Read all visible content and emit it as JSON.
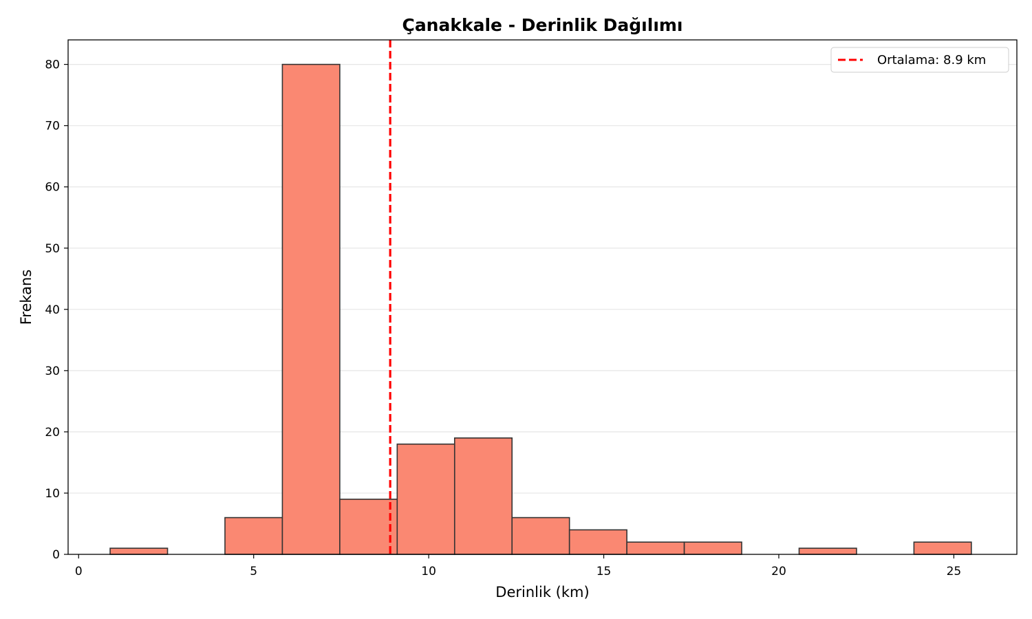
{
  "chart_data": {
    "type": "bar",
    "title": "Çanakkale - Derinlik Dağılımı",
    "xlabel": "Derinlik (km)",
    "ylabel": "Frekans",
    "xlim": [
      -0.3,
      26.8
    ],
    "ylim": [
      0,
      84
    ],
    "xticks": [
      0,
      5,
      10,
      15,
      20,
      25
    ],
    "yticks": [
      0,
      10,
      20,
      30,
      40,
      50,
      60,
      70,
      80
    ],
    "grid": "y",
    "bin_edges": [
      0.9,
      2.54,
      4.18,
      5.82,
      7.46,
      9.1,
      10.74,
      12.38,
      14.02,
      15.66,
      17.3,
      18.94,
      20.58,
      22.22,
      23.86,
      25.5
    ],
    "values": [
      1,
      0,
      6,
      80,
      9,
      18,
      19,
      6,
      4,
      2,
      2,
      0,
      1,
      0,
      2
    ],
    "bar_color": "#FA8872",
    "edge_color": "#333333",
    "mean": {
      "value": 8.9,
      "label": "Ortalama: 8.9 km",
      "color": "#FF0000",
      "style": "dashed"
    },
    "legend_position": "top-right"
  }
}
